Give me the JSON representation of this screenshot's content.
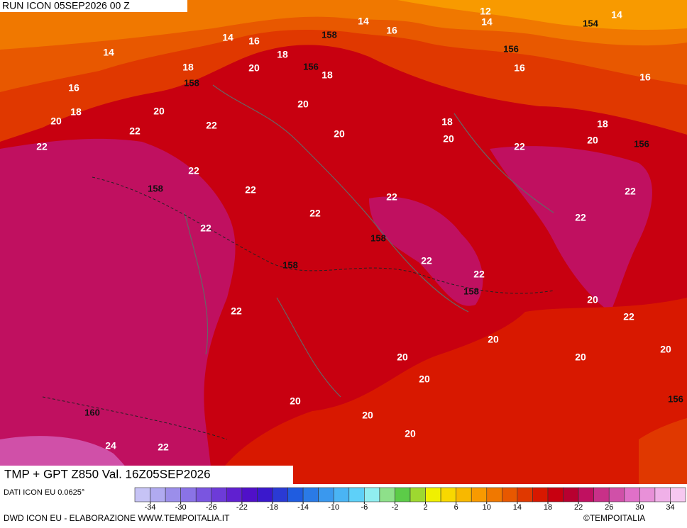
{
  "header": {
    "run": "RUN ICON 05SEP2026 00 Z"
  },
  "map": {
    "temperature_labels": [
      12,
      14,
      14,
      14,
      16,
      14,
      16,
      14,
      18,
      20,
      18,
      18,
      16,
      16,
      16,
      20,
      18,
      20,
      20,
      22,
      22,
      20,
      18,
      20,
      18,
      20,
      22,
      22,
      22,
      22,
      22,
      22,
      22,
      22,
      22,
      22,
      22,
      22,
      20,
      22,
      20,
      20,
      20,
      20,
      20,
      20,
      20,
      20,
      24,
      22
    ],
    "geopotential_labels": [
      158,
      154,
      156,
      156,
      158,
      156,
      158,
      158,
      158,
      158,
      160,
      156
    ]
  },
  "footer": {
    "title": "TMP + GPT Z850 Val. 16Z05SEP2026",
    "source": "DATI ICON EU 0.0625°",
    "credit": "DWD ICON EU - ELABORAZIONE WWW.TEMPOITALIA.IT",
    "copyright": "©TEMPOITALIA"
  },
  "legend": {
    "lim": [
      -36,
      36
    ],
    "colors": [
      "#c6c3f5",
      "#b0aaf0",
      "#9b8eea",
      "#8a73e6",
      "#7a55e0",
      "#6d3bd8",
      "#6020d0",
      "#5010c8",
      "#3a18cc",
      "#2a3ad4",
      "#1f5ce0",
      "#2a7ae6",
      "#3a98ee",
      "#4ab4f4",
      "#5ed0f8",
      "#90eef0",
      "#8ee08a",
      "#5ccc48",
      "#9ed830",
      "#f0f000",
      "#f8d800",
      "#f8b800",
      "#f89a00",
      "#f07800",
      "#e85800",
      "#e03800",
      "#d81800",
      "#c80010",
      "#b80030",
      "#c01060",
      "#c83088",
      "#d050a8",
      "#e070c8",
      "#e890d8",
      "#f0b0e8",
      "#f6c8f0"
    ],
    "ticks": [
      -34,
      -30,
      -26,
      -22,
      -18,
      -14,
      -10,
      -6,
      -2,
      2,
      6,
      10,
      14,
      18,
      22,
      26,
      30,
      34
    ]
  }
}
